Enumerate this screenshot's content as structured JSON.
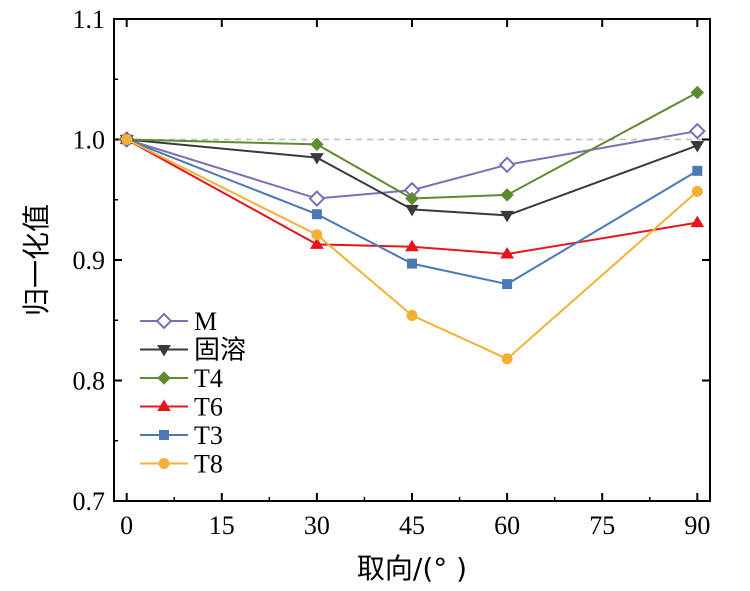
{
  "chart_data": {
    "type": "line",
    "xlabel": "取向/(°  )",
    "ylabel": "归一化值",
    "x": [
      0,
      30,
      45,
      60,
      90
    ],
    "xticks": [
      "0",
      "15",
      "30",
      "45",
      "60",
      "75",
      "90"
    ],
    "yticks": [
      "0.7",
      "0.8",
      "0.9",
      "1.0",
      "1.1"
    ],
    "xlim": [
      -2,
      92
    ],
    "ylim": [
      0.7,
      1.1
    ],
    "reference_line": 1.0,
    "legend_position": "bottom-left",
    "series": [
      {
        "name": "M",
        "values": [
          1.0,
          0.951,
          0.958,
          0.979,
          1.007
        ],
        "color": "#7b6fb8",
        "marker": "diamond-open"
      },
      {
        "name": "固溶",
        "values": [
          1.0,
          0.985,
          0.942,
          0.937,
          0.995
        ],
        "color": "#3a3a3a",
        "marker": "triangle-down"
      },
      {
        "name": "T4",
        "values": [
          1.0,
          0.996,
          0.951,
          0.954,
          1.039
        ],
        "color": "#5f8a2e",
        "marker": "diamond"
      },
      {
        "name": "T6",
        "values": [
          1.0,
          0.913,
          0.911,
          0.905,
          0.931
        ],
        "color": "#e8141b",
        "marker": "triangle-up"
      },
      {
        "name": "T3",
        "values": [
          1.0,
          0.938,
          0.897,
          0.88,
          0.974
        ],
        "color": "#4b79b8",
        "marker": "square"
      },
      {
        "name": "T8",
        "values": [
          1.0,
          0.921,
          0.854,
          0.818,
          0.957
        ],
        "color": "#f2b134",
        "marker": "circle"
      }
    ]
  }
}
